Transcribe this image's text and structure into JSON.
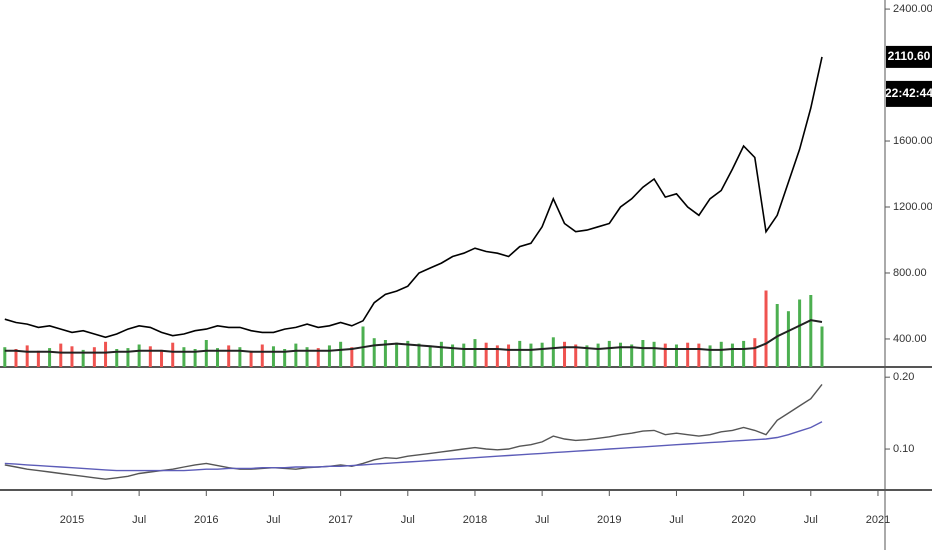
{
  "chart_data": [
    {
      "type": "line",
      "categories": [
        null,
        null,
        null,
        null,
        null,
        null,
        "2015",
        null,
        null,
        null,
        null,
        null,
        "Jul",
        null,
        null,
        null,
        null,
        null,
        "2016",
        null,
        null,
        null,
        null,
        null,
        "Jul",
        null,
        null,
        null,
        null,
        null,
        "2017",
        null,
        null,
        null,
        null,
        null,
        "Jul",
        null,
        null,
        null,
        null,
        null,
        "2018",
        null,
        null,
        null,
        null,
        null,
        "Jul",
        null,
        null,
        null,
        null,
        null,
        "2019",
        null,
        null,
        null,
        null,
        null,
        "Jul",
        null,
        null,
        null,
        null,
        null,
        "2020",
        null,
        null,
        null,
        null,
        null,
        "Jul",
        null,
        null,
        null,
        null,
        null,
        "2021"
      ],
      "ylim": [
        230,
        2455
      ],
      "yticks": [
        {
          "value": 400,
          "label": "400.00"
        },
        {
          "value": 800,
          "label": "800.00"
        },
        {
          "value": 1200,
          "label": "1200.00"
        },
        {
          "value": 1600,
          "label": "1600.00"
        },
        {
          "value": 2400,
          "label": "2400.00"
        }
      ],
      "price_tag": "2110.60",
      "countdown": "22:42:44",
      "series": [
        {
          "type": "line",
          "color": "#000000",
          "values": [
            520,
            500,
            490,
            470,
            480,
            460,
            440,
            450,
            430,
            410,
            430,
            460,
            480,
            470,
            440,
            420,
            430,
            450,
            460,
            480,
            470,
            470,
            450,
            440,
            440,
            460,
            470,
            490,
            470,
            480,
            500,
            480,
            510,
            620,
            670,
            690,
            720,
            800,
            830,
            860,
            900,
            920,
            950,
            930,
            920,
            900,
            960,
            980,
            1080,
            1250,
            1100,
            1050,
            1060,
            1080,
            1100,
            1200,
            1250,
            1320,
            1370,
            1260,
            1280,
            1200,
            1150,
            1250,
            1300,
            1430,
            1570,
            1500,
            1050,
            1150,
            1350,
            1550,
            1800,
            2110,
            null,
            null,
            null,
            null,
            null
          ]
        }
      ]
    },
    {
      "type": "bar",
      "ylim": [
        0,
        10
      ],
      "up_color": "#4caf50",
      "down_color": "#ef5350",
      "series": [
        {
          "type": "bar",
          "values": [
            2.2,
            2.0,
            2.4,
            1.8,
            2.1,
            2.6,
            2.3,
            1.9,
            2.2,
            2.8,
            2.0,
            2.1,
            2.5,
            2.3,
            1.9,
            2.7,
            2.2,
            2.0,
            3.0,
            2.1,
            2.4,
            2.2,
            1.8,
            2.5,
            2.3,
            2.0,
            2.6,
            2.2,
            2.1,
            2.4,
            2.8,
            2.2,
            4.5,
            3.2,
            3.0,
            2.7,
            2.9,
            2.6,
            2.4,
            2.8,
            2.5,
            2.6,
            3.1,
            2.7,
            2.4,
            2.5,
            2.9,
            2.6,
            2.7,
            3.3,
            2.8,
            2.5,
            2.4,
            2.6,
            2.9,
            2.7,
            2.5,
            3.0,
            2.8,
            2.6,
            2.5,
            2.7,
            2.6,
            2.4,
            2.8,
            2.6,
            2.9,
            3.2,
            8.5,
            7.0,
            6.2,
            7.5,
            8.0,
            4.5,
            null,
            null,
            null,
            null,
            null
          ]
        },
        {
          "type": "line",
          "color": "#222222",
          "values": [
            1.8,
            1.8,
            1.7,
            1.7,
            1.7,
            1.6,
            1.6,
            1.6,
            1.6,
            1.6,
            1.7,
            1.7,
            1.8,
            1.8,
            1.8,
            1.7,
            1.7,
            1.7,
            1.8,
            1.8,
            1.8,
            1.8,
            1.7,
            1.7,
            1.7,
            1.7,
            1.8,
            1.8,
            1.8,
            1.8,
            1.9,
            2.0,
            2.2,
            2.4,
            2.5,
            2.6,
            2.5,
            2.4,
            2.3,
            2.2,
            2.1,
            2.0,
            2.0,
            2.0,
            2.0,
            1.9,
            1.9,
            1.9,
            2.0,
            2.1,
            2.2,
            2.2,
            2.1,
            2.0,
            2.1,
            2.2,
            2.2,
            2.1,
            2.1,
            2.0,
            2.0,
            2.0,
            2.0,
            1.9,
            1.9,
            2.0,
            2.0,
            2.1,
            2.6,
            3.4,
            4.0,
            4.6,
            5.2,
            5.0,
            null,
            null,
            null,
            null,
            null
          ]
        }
      ]
    },
    {
      "type": "line",
      "ylim": [
        0.043,
        0.21
      ],
      "yticks": [
        {
          "value": 0.1,
          "label": "0.10"
        },
        {
          "value": 0.2,
          "label": "0.20"
        }
      ],
      "series": [
        {
          "type": "line",
          "color": "#555555",
          "values": [
            0.078,
            0.075,
            0.072,
            0.07,
            0.068,
            0.066,
            0.064,
            0.062,
            0.06,
            0.058,
            0.06,
            0.062,
            0.066,
            0.068,
            0.07,
            0.072,
            0.075,
            0.078,
            0.08,
            0.077,
            0.074,
            0.072,
            0.072,
            0.073,
            0.074,
            0.073,
            0.072,
            0.074,
            0.075,
            0.076,
            0.078,
            0.076,
            0.08,
            0.085,
            0.088,
            0.087,
            0.09,
            0.092,
            0.094,
            0.096,
            0.098,
            0.1,
            0.102,
            0.1,
            0.099,
            0.1,
            0.104,
            0.106,
            0.11,
            0.118,
            0.114,
            0.112,
            0.113,
            0.115,
            0.117,
            0.12,
            0.122,
            0.125,
            0.126,
            0.12,
            0.122,
            0.12,
            0.118,
            0.12,
            0.124,
            0.126,
            0.13,
            0.126,
            0.12,
            0.14,
            0.15,
            0.16,
            0.17,
            0.19,
            null,
            null,
            null,
            null,
            null
          ]
        },
        {
          "type": "line",
          "color": "#5c5cb8",
          "values": [
            0.08,
            0.079,
            0.078,
            0.077,
            0.076,
            0.075,
            0.074,
            0.073,
            0.072,
            0.071,
            0.07,
            0.07,
            0.07,
            0.07,
            0.07,
            0.07,
            0.07,
            0.071,
            0.072,
            0.072,
            0.073,
            0.073,
            0.073,
            0.074,
            0.074,
            0.074,
            0.075,
            0.075,
            0.075,
            0.076,
            0.076,
            0.077,
            0.078,
            0.079,
            0.08,
            0.081,
            0.082,
            0.083,
            0.084,
            0.085,
            0.086,
            0.087,
            0.088,
            0.089,
            0.09,
            0.091,
            0.092,
            0.093,
            0.094,
            0.095,
            0.096,
            0.097,
            0.098,
            0.099,
            0.1,
            0.101,
            0.102,
            0.103,
            0.104,
            0.105,
            0.106,
            0.107,
            0.108,
            0.109,
            0.11,
            0.111,
            0.112,
            0.113,
            0.114,
            0.116,
            0.12,
            0.125,
            0.13,
            0.138,
            null,
            null,
            null,
            null,
            null
          ]
        }
      ]
    }
  ]
}
